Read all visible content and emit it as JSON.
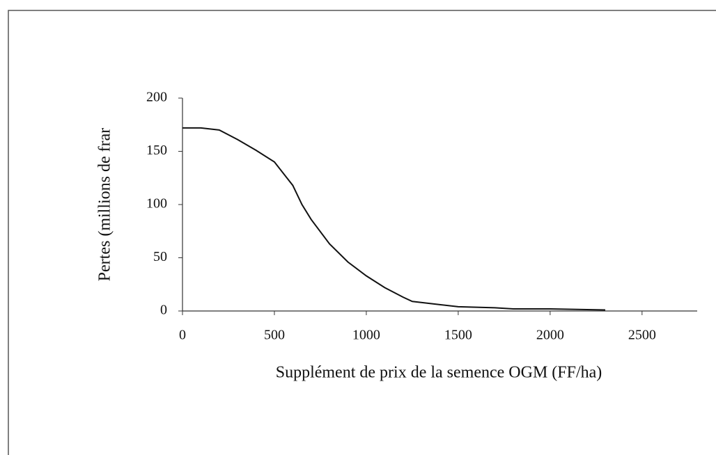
{
  "chart_data": {
    "type": "line",
    "x_label": "Supplément de prix de la semence OGM (FF/ha)",
    "y_label": "Pertes (millions de frar",
    "x": [
      0,
      100,
      200,
      300,
      400,
      500,
      600,
      650,
      700,
      800,
      900,
      1000,
      1100,
      1200,
      1250,
      1400,
      1500,
      1700,
      1800,
      2000,
      2300
    ],
    "values": [
      172,
      172,
      170,
      161,
      151,
      140,
      118,
      100,
      86,
      63,
      46,
      33,
      22,
      13,
      9,
      6,
      4,
      3,
      2,
      2,
      1
    ],
    "color": "#111111",
    "xlim": [
      0,
      2800
    ],
    "xticks": [
      0,
      500,
      1000,
      1500,
      2000,
      2500
    ],
    "ylim": [
      0,
      200
    ],
    "yticks": [
      0,
      50,
      100,
      150,
      200
    ],
    "grid": false
  }
}
